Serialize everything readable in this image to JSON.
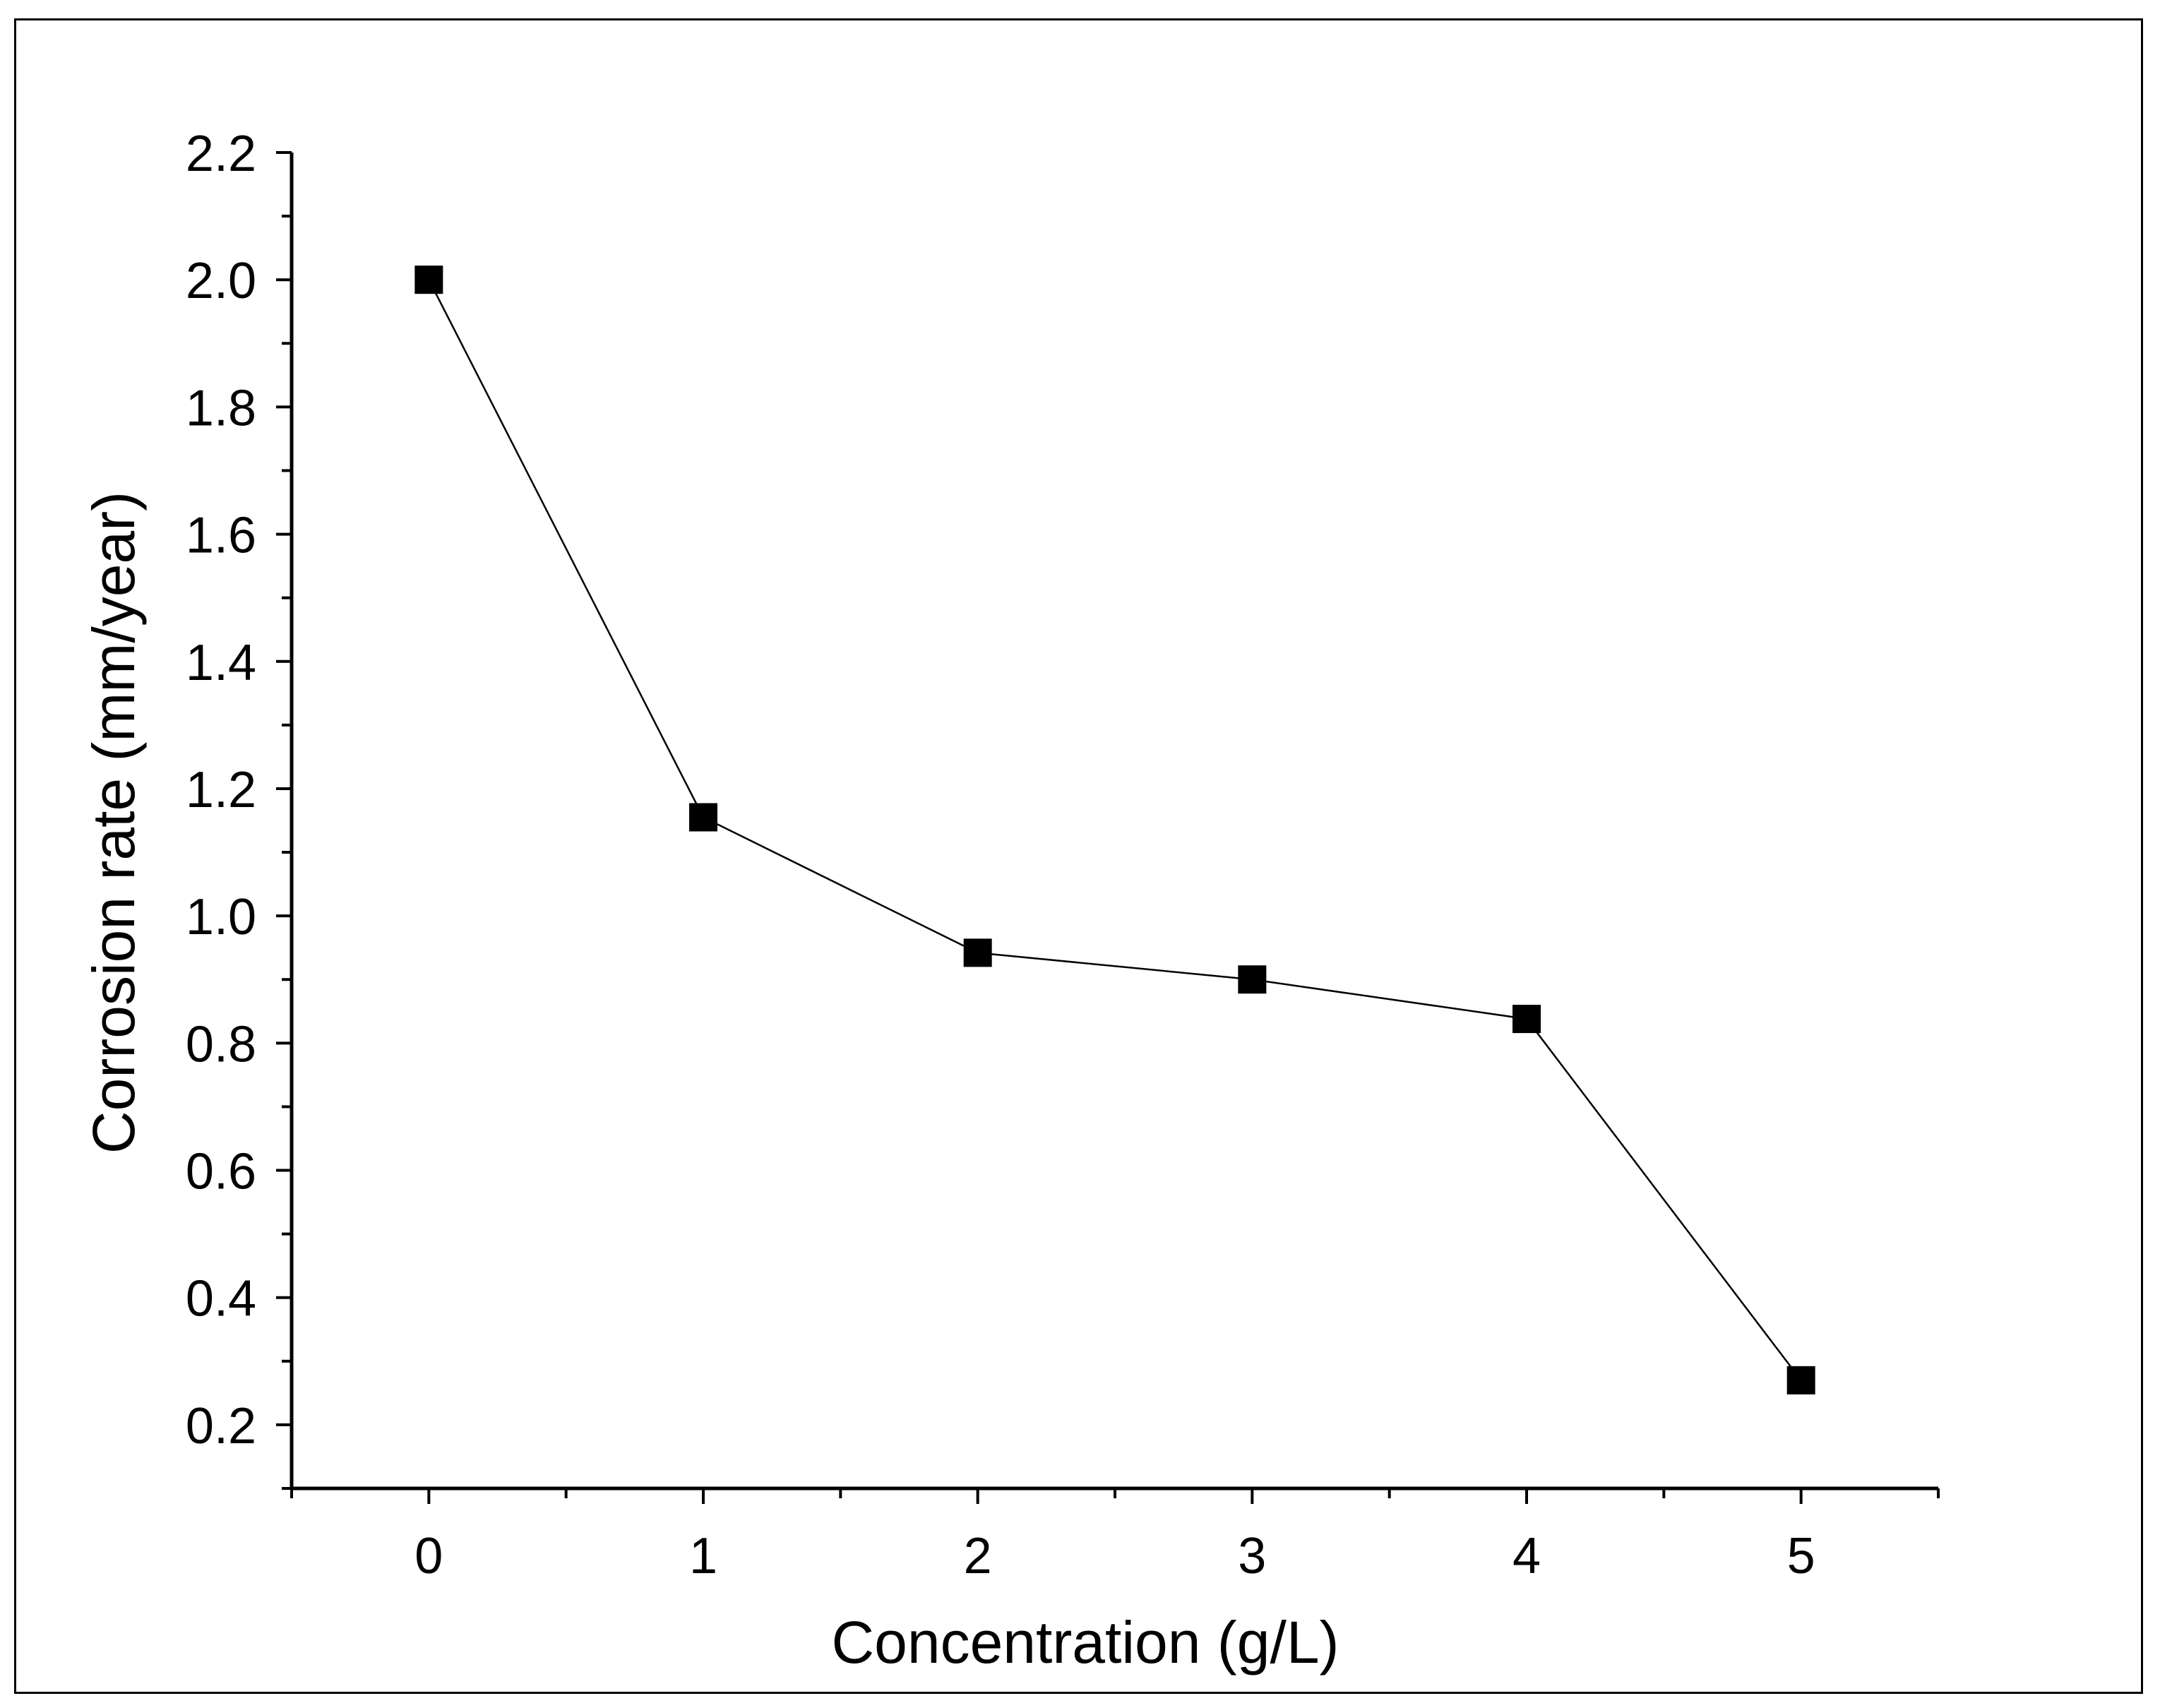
{
  "chart_data": {
    "type": "line",
    "title": "",
    "xlabel": "Concentration (g/L)",
    "ylabel": "Corrosion rate (mm/year)",
    "xlim": [
      -0.5,
      5.5
    ],
    "ylim": [
      0.1,
      2.2
    ],
    "x_ticks": [
      "0",
      "1",
      "2",
      "3",
      "4",
      "5"
    ],
    "x_tick_values": [
      0,
      1,
      2,
      3,
      4,
      5
    ],
    "y_ticks": [
      "0.2",
      "0.4",
      "0.6",
      "0.8",
      "1.0",
      "1.2",
      "1.4",
      "1.6",
      "1.8",
      "2.0",
      "2.2"
    ],
    "y_tick_values": [
      0.2,
      0.4,
      0.6,
      0.8,
      1.0,
      1.2,
      1.4,
      1.6,
      1.8,
      2.0,
      2.2
    ],
    "grid": false,
    "legend": "none",
    "series": [
      {
        "name": "Corrosion rate",
        "marker": "square",
        "color": "#000000",
        "x": [
          0,
          1,
          2,
          3,
          4,
          5
        ],
        "y": [
          2.0,
          1.155,
          0.942,
          0.9,
          0.838,
          0.27
        ]
      }
    ]
  }
}
